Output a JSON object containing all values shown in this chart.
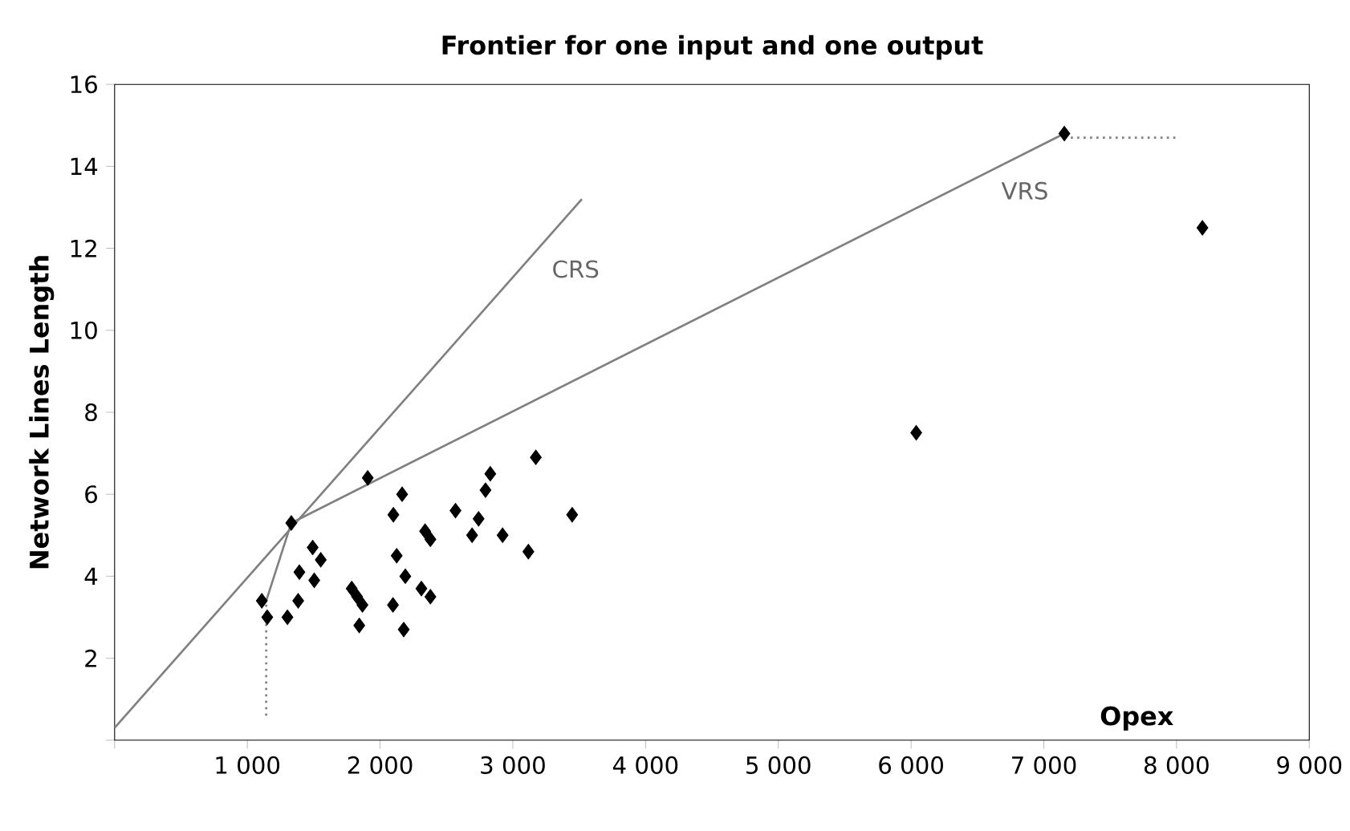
{
  "chart_data": {
    "type": "scatter",
    "title": "Frontier for one input and one output",
    "xlabel": "Opex",
    "ylabel": "Network Lines Length",
    "xlim": [
      0,
      9000
    ],
    "ylim": [
      0,
      16
    ],
    "xticks": [
      {
        "value": 0,
        "label": null
      },
      {
        "value": 1000,
        "label": "1 000"
      },
      {
        "value": 2000,
        "label": "2 000"
      },
      {
        "value": 3000,
        "label": "3 000"
      },
      {
        "value": 4000,
        "label": "4 000"
      },
      {
        "value": 5000,
        "label": "5 000"
      },
      {
        "value": 6000,
        "label": "6 000"
      },
      {
        "value": 7000,
        "label": "7 000"
      },
      {
        "value": 8000,
        "label": "8 000"
      },
      {
        "value": 9000,
        "label": "9 000"
      }
    ],
    "yticks": [
      {
        "value": 0,
        "label": null
      },
      2,
      4,
      6,
      8,
      10,
      12,
      14,
      16
    ],
    "grid": false,
    "series": [
      {
        "color": "#000000",
        "marker": "diamond",
        "x": [
          1109,
          1150,
          1302,
          1383,
          1392,
          1504,
          1492,
          1553,
          1331,
          1907,
          1786,
          1827,
          1867,
          1843,
          2100,
          2166,
          2125,
          2190,
          2097,
          2178,
          2311,
          2379,
          2339,
          2379,
          2568,
          2742,
          2693,
          2794,
          2830,
          2923,
          3117,
          3173,
          3447,
          7155,
          8195,
          6039
        ],
        "values": [
          3.4,
          3.0,
          3.0,
          3.4,
          4.1,
          3.9,
          4.7,
          4.4,
          5.3,
          6.4,
          3.7,
          3.5,
          3.3,
          2.8,
          5.5,
          6.0,
          4.5,
          4.0,
          3.3,
          2.7,
          3.7,
          3.5,
          5.1,
          4.9,
          5.6,
          5.4,
          5.0,
          6.1,
          6.5,
          5.0,
          4.6,
          6.9,
          5.5,
          14.8,
          12.5,
          7.5
        ]
      },
      {
        "type": "line",
        "name": "CRS",
        "color": "#808080",
        "marker": "none",
        "line_style": "solid",
        "x": [
          0,
          3520
        ],
        "values": [
          0.3,
          13.2
        ]
      },
      {
        "type": "line",
        "name": "VRS",
        "color": "#808080",
        "marker": "none",
        "line_style": "solid",
        "x": [
          1142,
          1331,
          7155
        ],
        "values": [
          3.4,
          5.3,
          14.8
        ]
      },
      {
        "type": "line",
        "color": "#808080",
        "marker": "none",
        "line_style": "dotted",
        "x": [
          1142,
          1142
        ],
        "values": [
          0.6,
          3.4
        ]
      },
      {
        "type": "line",
        "color": "#808080",
        "marker": "none",
        "line_style": "dotted",
        "x": [
          7155,
          8020
        ],
        "values": [
          14.7,
          14.7
        ]
      }
    ]
  }
}
